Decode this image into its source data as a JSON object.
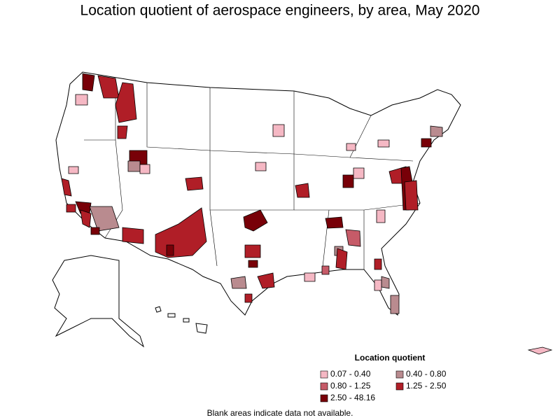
{
  "title": "Location quotient of aerospace engineers, by area, May 2020",
  "legend": {
    "title": "Location quotient",
    "items": [
      {
        "label": "0.07 - 0.40",
        "color": "#f5b8c4"
      },
      {
        "label": "0.40 - 0.80",
        "color": "#b98b8f"
      },
      {
        "label": "0.80 - 1.25",
        "color": "#c65b68"
      },
      {
        "label": "1.25 - 2.50",
        "color": "#b01e27"
      },
      {
        "label": "2.50 - 48.16",
        "color": "#780008"
      }
    ]
  },
  "note": "Blank areas indicate data not available."
}
